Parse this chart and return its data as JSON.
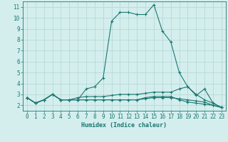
{
  "xlabel": "Humidex (Indice chaleur)",
  "bg_color": "#d4eeee",
  "grid_color": "#b8d8d8",
  "line_color": "#1a7870",
  "xlim": [
    -0.5,
    23.5
  ],
  "ylim": [
    1.5,
    11.5
  ],
  "xticks": [
    0,
    1,
    2,
    3,
    4,
    5,
    6,
    7,
    8,
    9,
    10,
    11,
    12,
    13,
    14,
    15,
    16,
    17,
    18,
    19,
    20,
    21,
    22,
    23
  ],
  "yticks": [
    2,
    3,
    4,
    5,
    6,
    7,
    8,
    9,
    10,
    11
  ],
  "series": [
    [
      2.7,
      2.2,
      2.5,
      3.0,
      2.5,
      2.5,
      2.5,
      3.5,
      3.7,
      4.5,
      9.7,
      10.5,
      10.5,
      10.3,
      10.3,
      11.2,
      8.8,
      7.8,
      5.0,
      3.7,
      2.9,
      3.5,
      2.2,
      1.8
    ],
    [
      2.7,
      2.2,
      2.5,
      3.0,
      2.5,
      2.5,
      2.7,
      2.8,
      2.8,
      2.8,
      2.9,
      3.0,
      3.0,
      3.0,
      3.1,
      3.2,
      3.2,
      3.2,
      3.5,
      3.7,
      3.0,
      2.5,
      2.2,
      1.8
    ],
    [
      2.7,
      2.2,
      2.5,
      3.0,
      2.5,
      2.5,
      2.5,
      2.5,
      2.5,
      2.5,
      2.5,
      2.5,
      2.5,
      2.5,
      2.7,
      2.8,
      2.8,
      2.8,
      2.5,
      2.3,
      2.2,
      2.1,
      2.0,
      1.8
    ],
    [
      2.7,
      2.2,
      2.5,
      3.0,
      2.5,
      2.5,
      2.5,
      2.5,
      2.5,
      2.5,
      2.5,
      2.5,
      2.5,
      2.5,
      2.6,
      2.7,
      2.7,
      2.7,
      2.6,
      2.5,
      2.4,
      2.3,
      2.0,
      1.8
    ]
  ]
}
